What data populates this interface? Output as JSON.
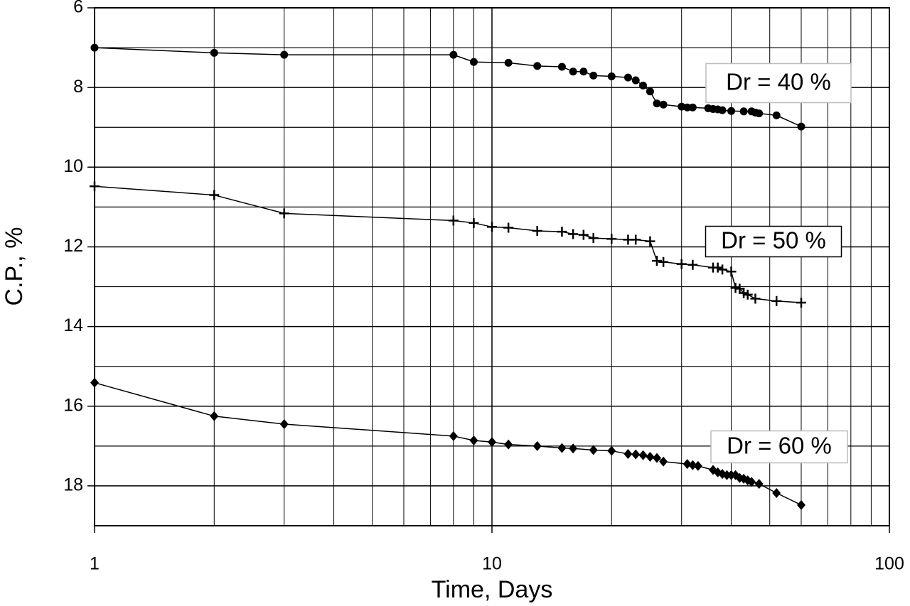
{
  "chart_data": {
    "type": "line",
    "xlabel": "Time,  Days",
    "ylabel": "C.P., %",
    "xscale": "log",
    "xlim": [
      1,
      100
    ],
    "xticks": [
      1,
      10,
      100
    ],
    "ylim": [
      6,
      19
    ],
    "yinverted": true,
    "yticks": [
      6,
      8,
      10,
      12,
      14,
      16,
      18
    ],
    "yminor": [
      7,
      9,
      11,
      13,
      15,
      17,
      19
    ],
    "grid": true,
    "series": [
      {
        "name": "Dr = 40 %",
        "color": "#000000",
        "marker": "circle",
        "x": [
          1,
          2,
          3,
          8,
          9,
          11,
          13,
          15,
          16,
          17,
          18,
          20,
          22,
          23,
          24,
          25,
          26,
          27,
          30,
          31,
          32,
          35,
          36,
          37,
          38,
          40,
          43,
          45,
          46,
          47,
          52,
          60
        ],
        "values": [
          7.0,
          7.13,
          7.18,
          7.18,
          7.36,
          7.38,
          7.46,
          7.48,
          7.6,
          7.6,
          7.7,
          7.72,
          7.75,
          7.82,
          7.95,
          8.1,
          8.4,
          8.43,
          8.48,
          8.5,
          8.5,
          8.52,
          8.54,
          8.55,
          8.57,
          8.59,
          8.6,
          8.6,
          8.63,
          8.65,
          8.7,
          8.98
        ]
      },
      {
        "name": "Dr = 50 %",
        "color": "#000000",
        "marker": "plus",
        "x": [
          1,
          2,
          3,
          8,
          9,
          10,
          11,
          13,
          15,
          16,
          17,
          18,
          20,
          22,
          23,
          25,
          26,
          27,
          30,
          32,
          36,
          37,
          38,
          40,
          41,
          42,
          43,
          44,
          46,
          52,
          60
        ],
        "values": [
          10.48,
          10.7,
          11.16,
          11.34,
          11.4,
          11.5,
          11.52,
          11.6,
          11.62,
          11.68,
          11.7,
          11.78,
          11.8,
          11.82,
          11.82,
          11.86,
          12.35,
          12.38,
          12.43,
          12.45,
          12.52,
          12.52,
          12.57,
          12.62,
          13.03,
          13.05,
          13.16,
          13.2,
          13.3,
          13.36,
          13.4
        ]
      },
      {
        "name": "Dr = 60 %",
        "color": "#000000",
        "marker": "diamond",
        "x": [
          1,
          2,
          3,
          8,
          9,
          10,
          11,
          13,
          15,
          16,
          18,
          20,
          22,
          23,
          24,
          25,
          26,
          27,
          31,
          32,
          33,
          36,
          37,
          38,
          39,
          40,
          41,
          42,
          43,
          44,
          45,
          47,
          52,
          60
        ],
        "values": [
          15.41,
          16.25,
          16.45,
          16.75,
          16.86,
          16.9,
          16.96,
          17.0,
          17.05,
          17.06,
          17.1,
          17.12,
          17.2,
          17.21,
          17.23,
          17.27,
          17.3,
          17.39,
          17.45,
          17.48,
          17.5,
          17.6,
          17.66,
          17.7,
          17.73,
          17.73,
          17.73,
          17.8,
          17.82,
          17.86,
          17.9,
          17.95,
          18.18,
          18.48
        ]
      }
    ]
  }
}
